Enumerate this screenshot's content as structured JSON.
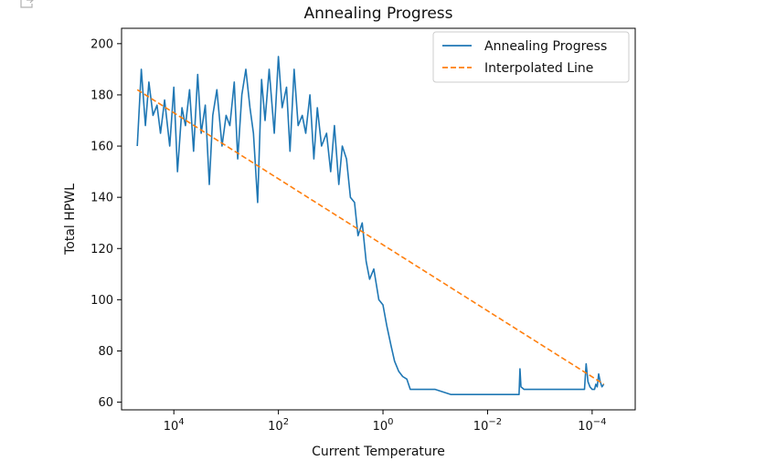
{
  "icons": {
    "corner": "open-in-new-icon"
  },
  "chart_data": {
    "type": "line",
    "title": "Annealing Progress",
    "xlabel": "Current Temperature",
    "ylabel": "Total HPWL",
    "x_scale": "log",
    "x_axis_inverted": true,
    "xlim": [
      100000,
      1.5e-05
    ],
    "ylim": [
      57,
      206
    ],
    "x_ticks": [
      {
        "value": 10000,
        "base": "10",
        "exp": "4"
      },
      {
        "value": 100,
        "base": "10",
        "exp": "2"
      },
      {
        "value": 1,
        "base": "10",
        "exp": "0"
      },
      {
        "value": 0.01,
        "base": "10",
        "exp": "−2"
      },
      {
        "value": 0.0001,
        "base": "10",
        "exp": "−4"
      }
    ],
    "y_ticks": [
      60,
      80,
      100,
      120,
      140,
      160,
      180,
      200
    ],
    "grid": false,
    "legend_position": "top-right",
    "colors": {
      "progress": "#1f77b4",
      "interpolated": "#ff7f0e"
    },
    "series": [
      {
        "name": "Annealing Progress",
        "style": "solid",
        "x": [
          50000,
          42000,
          35000,
          30000,
          25000,
          21000,
          18000,
          15000,
          12000,
          10000,
          8500,
          7000,
          6000,
          5000,
          4200,
          3500,
          3000,
          2500,
          2100,
          1800,
          1500,
          1200,
          1000,
          850,
          700,
          600,
          500,
          420,
          350,
          300,
          250,
          210,
          180,
          150,
          120,
          100,
          85,
          70,
          60,
          50,
          42,
          35,
          30,
          25,
          21,
          18,
          15,
          12,
          10,
          8.5,
          7,
          6,
          5,
          4.2,
          3.5,
          3,
          2.5,
          2.1,
          1.8,
          1.5,
          1.2,
          1.0,
          0.85,
          0.7,
          0.6,
          0.5,
          0.42,
          0.35,
          0.3,
          0.25,
          0.21,
          0.18,
          0.15,
          0.1,
          0.05,
          0.02,
          0.01,
          0.005,
          0.0025,
          0.0024,
          0.0023,
          0.002,
          0.001,
          0.0005,
          0.0002,
          0.00014,
          0.00013,
          0.00012,
          0.00011,
          0.0001,
          9e-05,
          8.5e-05,
          8e-05,
          7.5e-05,
          7e-05,
          6.5e-05,
          6e-05
        ],
        "values": [
          160,
          190,
          168,
          185,
          172,
          176,
          165,
          178,
          160,
          183,
          150,
          175,
          168,
          182,
          158,
          188,
          165,
          176,
          145,
          172,
          182,
          160,
          172,
          168,
          185,
          155,
          180,
          190,
          175,
          165,
          138,
          186,
          170,
          190,
          165,
          195,
          175,
          183,
          158,
          190,
          168,
          172,
          165,
          180,
          155,
          175,
          160,
          165,
          150,
          168,
          145,
          160,
          155,
          140,
          138,
          125,
          130,
          115,
          108,
          112,
          100,
          98,
          90,
          82,
          76,
          72,
          70,
          69,
          65,
          65,
          65,
          65,
          65,
          65,
          63,
          63,
          63,
          63,
          63,
          73,
          66,
          65,
          65,
          65,
          65,
          65,
          75,
          68,
          66,
          65,
          65,
          67,
          66,
          71,
          68,
          66,
          67
        ]
      },
      {
        "name": "Interpolated Line",
        "style": "dashed",
        "x": [
          50000,
          6e-05
        ],
        "values": [
          182,
          67
        ]
      }
    ]
  }
}
